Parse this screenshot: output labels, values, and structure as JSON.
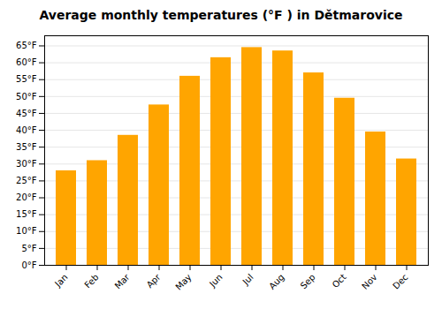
{
  "chart_data": {
    "type": "bar",
    "title": "Average monthly temperatures (°F ) in Dětmarovice",
    "categories": [
      "Jan",
      "Feb",
      "Mar",
      "Apr",
      "May",
      "Jun",
      "Jul",
      "Aug",
      "Sep",
      "Oct",
      "Nov",
      "Dec"
    ],
    "values": [
      28,
      31,
      38.5,
      47.5,
      56,
      61.5,
      64.5,
      63.5,
      57,
      49.5,
      39.5,
      31.5
    ],
    "color": "#FFA500",
    "ylim": [
      0,
      68
    ],
    "yticks": [
      {
        "value": 0,
        "label": "0°F"
      },
      {
        "value": 5,
        "label": "5°F"
      },
      {
        "value": 10,
        "label": "10°F"
      },
      {
        "value": 15,
        "label": "15°F"
      },
      {
        "value": 20,
        "label": "20°F"
      },
      {
        "value": 25,
        "label": "25°F"
      },
      {
        "value": 30,
        "label": "30°F"
      },
      {
        "value": 35,
        "label": "35°F"
      },
      {
        "value": 40,
        "label": "40°F"
      },
      {
        "value": 45,
        "label": "45°F"
      },
      {
        "value": 50,
        "label": "50°F"
      },
      {
        "value": 55,
        "label": "55°F"
      },
      {
        "value": 60,
        "label": "60°F"
      },
      {
        "value": 65,
        "label": "65°F"
      }
    ],
    "grid": true
  }
}
